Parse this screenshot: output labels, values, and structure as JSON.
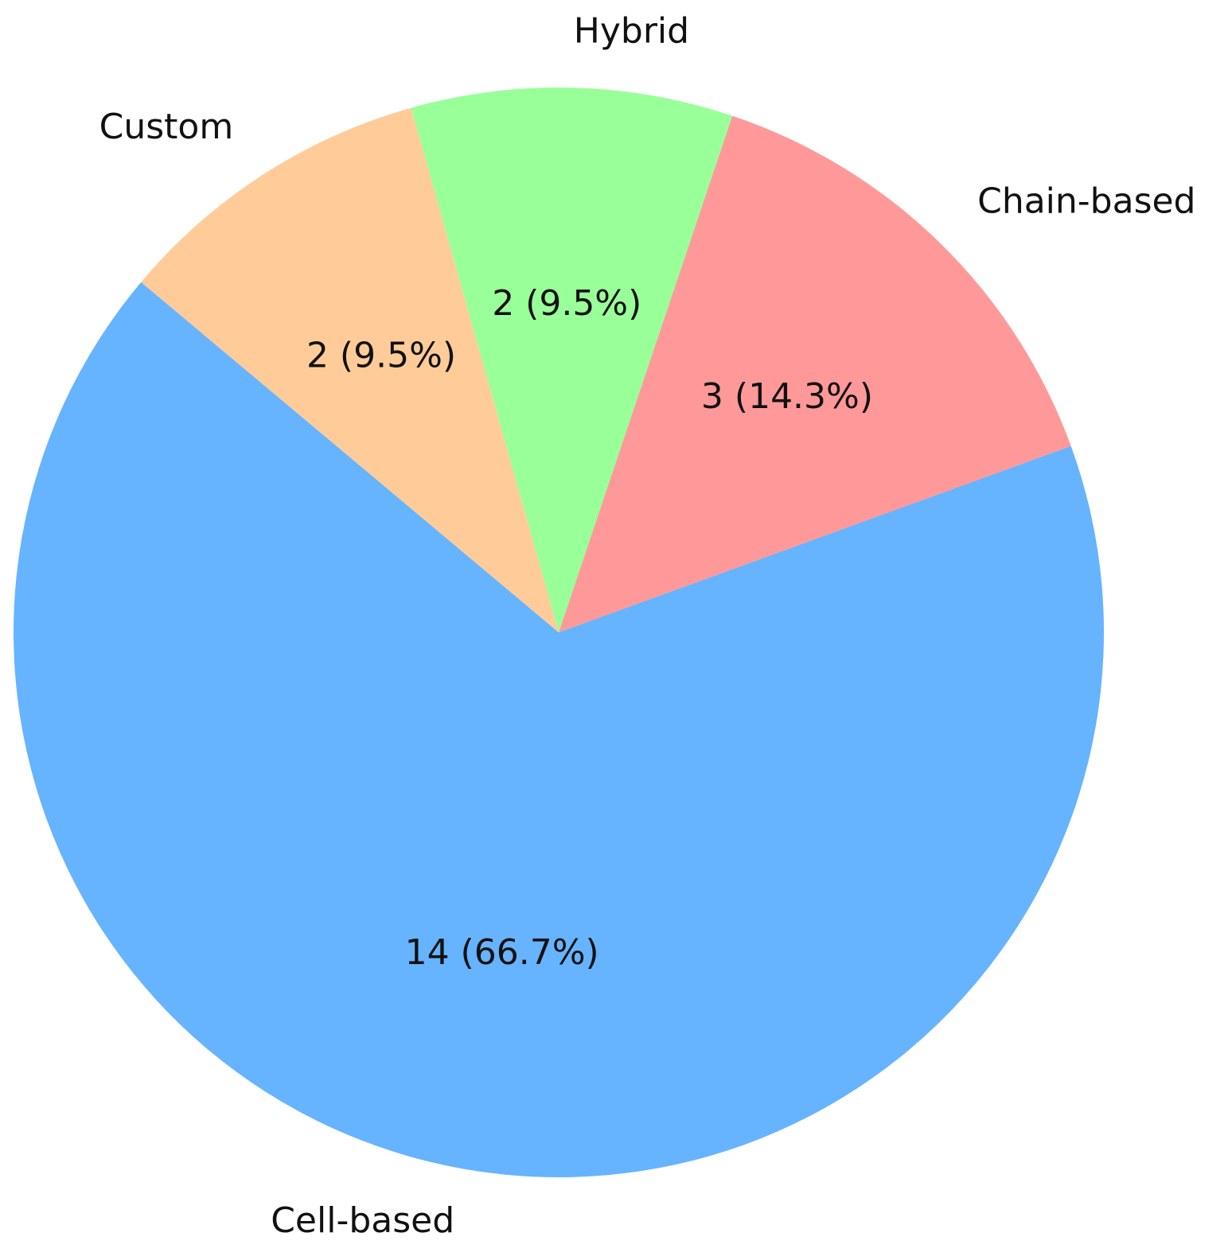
{
  "chart_data": {
    "type": "pie",
    "categories": [
      "Cell-based",
      "Chain-based",
      "Hybrid",
      "Custom"
    ],
    "values": [
      14,
      3,
      2,
      2
    ],
    "value_labels": [
      "14 (66.7%)",
      "3 (14.3%)",
      "2 (9.5%)",
      "2 (9.5%)"
    ],
    "colors": [
      "#66b3ff",
      "#ff9999",
      "#99ff99",
      "#ffcc99"
    ]
  }
}
